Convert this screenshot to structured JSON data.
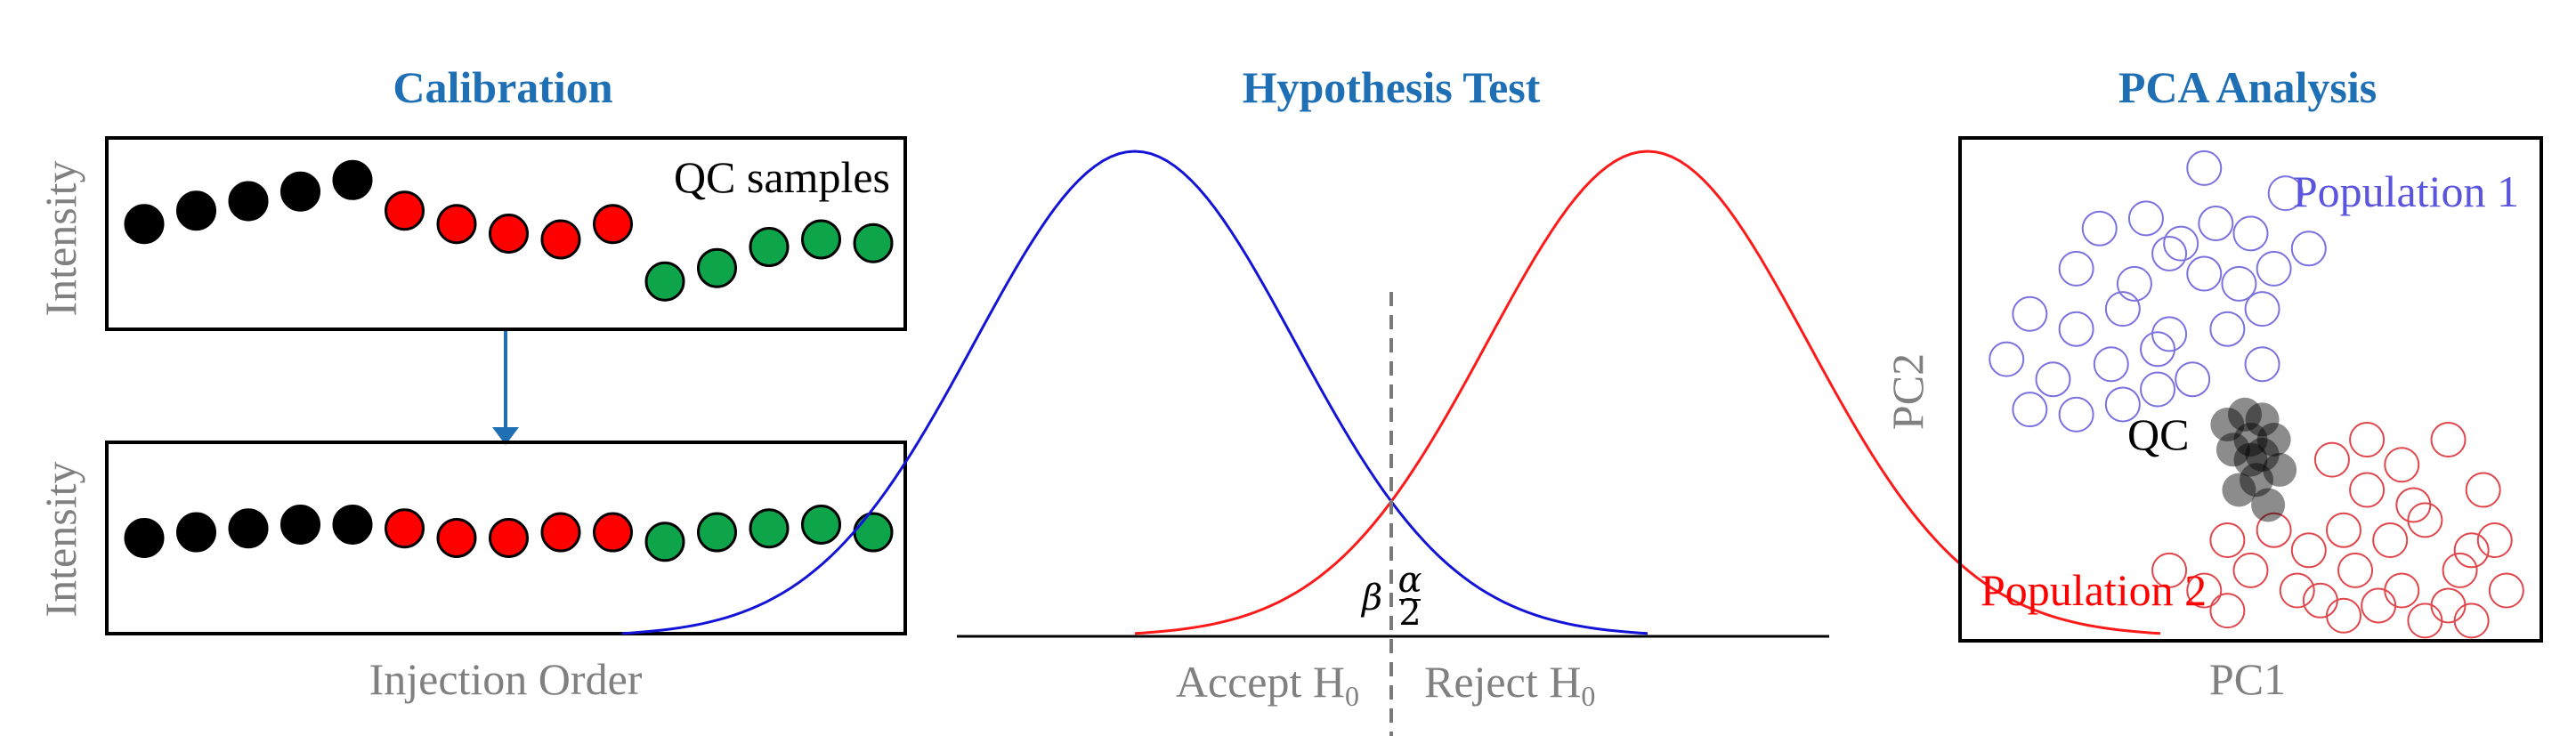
{
  "panels": {
    "calibration": {
      "title": "Calibration",
      "ylabel_top": "Intensity",
      "ylabel_bottom": "Intensity",
      "xlabel": "Injection Order",
      "annotation": "QC samples"
    },
    "hypothesis": {
      "title": "Hypothesis Test",
      "accept_label": "Accept H",
      "reject_label": "Reject H",
      "subscript": "0",
      "beta": "β",
      "alpha_num": "α",
      "alpha_den": "2"
    },
    "pca": {
      "title": "PCA Analysis",
      "xlabel": "PC1",
      "ylabel": "PC2",
      "population1": "Population 1",
      "population2": "Population 2",
      "qc": "QC"
    }
  },
  "colors": {
    "title": "#1f6fb5",
    "arrow": "#1f6fb5",
    "black_dot": "#000000",
    "red_dot": "#ff0000",
    "green_dot": "#0ea54a",
    "curve_accept": "#1414d8",
    "curve_reject": "#ff1a1a",
    "population1": "#7b72e0",
    "population2": "#e0474c",
    "axis_text": "#808080"
  },
  "calibration_series": {
    "before": {
      "groups": [
        "black",
        "black",
        "black",
        "black",
        "black",
        "red",
        "red",
        "red",
        "red",
        "red",
        "green",
        "green",
        "green",
        "green",
        "green"
      ],
      "levels": [
        0.55,
        0.62,
        0.67,
        0.72,
        0.78,
        0.62,
        0.55,
        0.5,
        0.47,
        0.55,
        0.25,
        0.32,
        0.43,
        0.47,
        0.45
      ]
    },
    "after": {
      "groups": [
        "black",
        "black",
        "black",
        "black",
        "black",
        "red",
        "red",
        "red",
        "red",
        "red",
        "green",
        "green",
        "green",
        "green",
        "green"
      ],
      "levels": [
        0.5,
        0.53,
        0.55,
        0.57,
        0.57,
        0.55,
        0.5,
        0.5,
        0.53,
        0.53,
        0.48,
        0.53,
        0.55,
        0.57,
        0.53
      ]
    }
  },
  "hypothesis_distributions": {
    "accept_mean": -1.6,
    "reject_mean": 1.6,
    "sd": 1.0,
    "critical_value": 0.0
  },
  "pca_points": {
    "population1": [
      [
        0.42,
        0.94
      ],
      [
        0.56,
        0.89
      ],
      [
        0.24,
        0.82
      ],
      [
        0.32,
        0.84
      ],
      [
        0.38,
        0.79
      ],
      [
        0.44,
        0.83
      ],
      [
        0.5,
        0.81
      ],
      [
        0.6,
        0.78
      ],
      [
        0.2,
        0.74
      ],
      [
        0.3,
        0.71
      ],
      [
        0.36,
        0.77
      ],
      [
        0.42,
        0.73
      ],
      [
        0.48,
        0.71
      ],
      [
        0.54,
        0.74
      ],
      [
        0.12,
        0.65
      ],
      [
        0.2,
        0.62
      ],
      [
        0.28,
        0.66
      ],
      [
        0.36,
        0.61
      ],
      [
        0.46,
        0.62
      ],
      [
        0.52,
        0.66
      ],
      [
        0.08,
        0.56
      ],
      [
        0.16,
        0.52
      ],
      [
        0.26,
        0.55
      ],
      [
        0.34,
        0.58
      ],
      [
        0.4,
        0.52
      ],
      [
        0.52,
        0.55
      ],
      [
        0.12,
        0.46
      ],
      [
        0.2,
        0.45
      ],
      [
        0.28,
        0.47
      ],
      [
        0.34,
        0.5
      ]
    ],
    "population2": [
      [
        0.7,
        0.4
      ],
      [
        0.84,
        0.4
      ],
      [
        0.64,
        0.36
      ],
      [
        0.76,
        0.35
      ],
      [
        0.7,
        0.3
      ],
      [
        0.78,
        0.27
      ],
      [
        0.9,
        0.3
      ],
      [
        0.66,
        0.22
      ],
      [
        0.74,
        0.2
      ],
      [
        0.8,
        0.24
      ],
      [
        0.88,
        0.18
      ],
      [
        0.6,
        0.18
      ],
      [
        0.68,
        0.14
      ],
      [
        0.86,
        0.14
      ],
      [
        0.94,
        0.1
      ],
      [
        0.46,
        0.2
      ],
      [
        0.54,
        0.22
      ],
      [
        0.5,
        0.14
      ],
      [
        0.58,
        0.1
      ],
      [
        0.42,
        0.1
      ],
      [
        0.36,
        0.14
      ],
      [
        0.62,
        0.08
      ],
      [
        0.76,
        0.1
      ],
      [
        0.72,
        0.07
      ],
      [
        0.84,
        0.07
      ],
      [
        0.92,
        0.2
      ],
      [
        0.66,
        0.05
      ],
      [
        0.46,
        0.06
      ],
      [
        0.8,
        0.04
      ],
      [
        0.88,
        0.04
      ]
    ],
    "qc": [
      [
        0.46,
        0.43
      ],
      [
        0.49,
        0.45
      ],
      [
        0.52,
        0.44
      ],
      [
        0.47,
        0.38
      ],
      [
        0.5,
        0.36
      ],
      [
        0.54,
        0.4
      ],
      [
        0.51,
        0.32
      ],
      [
        0.55,
        0.34
      ],
      [
        0.48,
        0.3
      ],
      [
        0.53,
        0.27
      ],
      [
        0.5,
        0.4
      ],
      [
        0.52,
        0.37
      ]
    ]
  }
}
